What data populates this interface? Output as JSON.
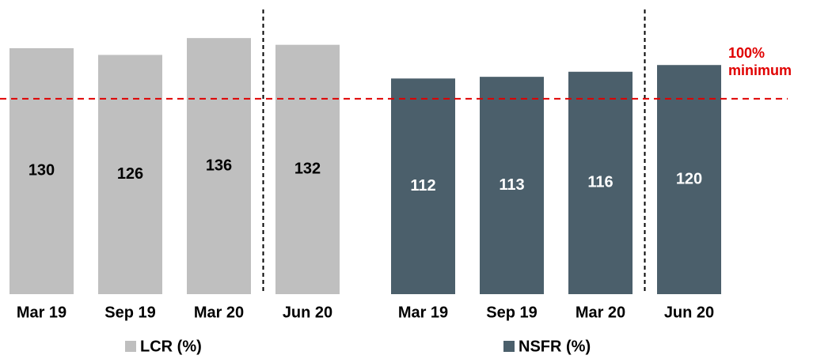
{
  "chart_data": {
    "type": "bar",
    "ylim": [
      -16,
      160
    ],
    "reference": {
      "value": 100,
      "label": "100%",
      "note": "minimum",
      "color": "#e00000"
    },
    "series": [
      {
        "name": "LCR (%)",
        "color": "#bfbfbf",
        "label_color": "#000000",
        "categories": [
          "Mar 19",
          "Sep 19",
          "Mar 20",
          "Jun 20"
        ],
        "values": [
          130,
          126,
          136,
          132
        ]
      },
      {
        "name": "NSFR (%)",
        "color": "#4b5f6b",
        "label_color": "#ffffff",
        "categories": [
          "Mar 19",
          "Sep 19",
          "Mar 20",
          "Jun 20"
        ],
        "values": [
          112,
          113,
          116,
          120
        ]
      }
    ]
  }
}
